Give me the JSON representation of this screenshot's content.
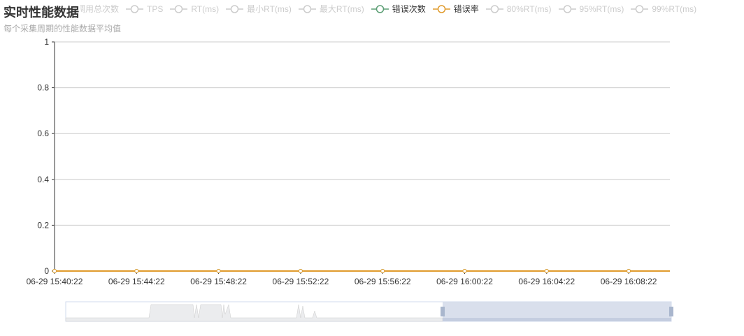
{
  "title": "实时性能数据",
  "subtitle": "每个采集周期的性能数据平均值",
  "legend": [
    {
      "name": "调用总次数",
      "active": false,
      "color": "#cccccc"
    },
    {
      "name": "TPS",
      "active": false,
      "color": "#cccccc"
    },
    {
      "name": "RT(ms)",
      "active": false,
      "color": "#cccccc"
    },
    {
      "name": "最小RT(ms)",
      "active": false,
      "color": "#cccccc"
    },
    {
      "name": "最大RT(ms)",
      "active": false,
      "color": "#cccccc"
    },
    {
      "name": "错误次数",
      "active": true,
      "color": "#5b9e74"
    },
    {
      "name": "错误率",
      "active": true,
      "color": "#e09b2d"
    },
    {
      "name": "80%RT(ms)",
      "active": false,
      "color": "#cccccc"
    },
    {
      "name": "95%RT(ms)",
      "active": false,
      "color": "#cccccc"
    },
    {
      "name": "99%RT(ms)",
      "active": false,
      "color": "#cccccc"
    }
  ],
  "chart_data": {
    "type": "line",
    "ylim": [
      0,
      1
    ],
    "yticks": [
      "0",
      "0.2",
      "0.4",
      "0.6",
      "0.8",
      "1"
    ],
    "categories": [
      "06-29 15:40:22",
      "06-29 15:44:22",
      "06-29 15:48:22",
      "06-29 15:52:22",
      "06-29 15:56:22",
      "06-29 16:00:22",
      "06-29 16:04:22",
      "06-29 16:08:22"
    ],
    "series": [
      {
        "name": "错误次数",
        "color": "#5b9e74",
        "values": [
          0,
          0,
          0,
          0,
          0,
          0,
          0,
          0
        ]
      },
      {
        "name": "错误率",
        "color": "#e09b2d",
        "values": [
          0,
          0,
          0,
          0,
          0,
          0,
          0,
          0
        ]
      }
    ],
    "grid": true,
    "legend_position": "top",
    "datazoom": {
      "start_percent": 62,
      "end_percent": 100
    }
  }
}
